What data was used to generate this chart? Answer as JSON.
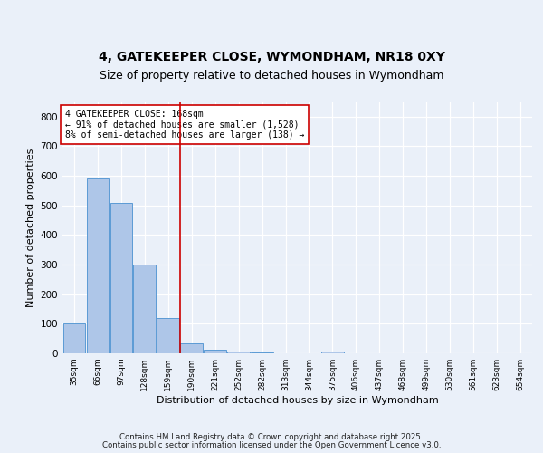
{
  "title1": "4, GATEKEEPER CLOSE, WYMONDHAM, NR18 0XY",
  "title2": "Size of property relative to detached houses in Wymondham",
  "xlabel": "Distribution of detached houses by size in Wymondham",
  "ylabel": "Number of detached properties",
  "bin_labels": [
    "35sqm",
    "66sqm",
    "97sqm",
    "128sqm",
    "159sqm",
    "190sqm",
    "221sqm",
    "252sqm",
    "282sqm",
    "313sqm",
    "344sqm",
    "375sqm",
    "406sqm",
    "437sqm",
    "468sqm",
    "499sqm",
    "530sqm",
    "561sqm",
    "623sqm",
    "654sqm"
  ],
  "bar_heights": [
    100,
    590,
    510,
    300,
    120,
    35,
    12,
    7,
    3,
    0,
    0,
    5,
    0,
    0,
    0,
    0,
    0,
    0,
    0,
    0
  ],
  "bar_color": "#aec6e8",
  "bar_edge_color": "#5b9bd5",
  "vline_x": 4.5,
  "vline_color": "#cc0000",
  "annotation_text": "4 GATEKEEPER CLOSE: 168sqm\n← 91% of detached houses are smaller (1,528)\n8% of semi-detached houses are larger (138) →",
  "annotation_box_color": "#ffffff",
  "annotation_box_edge": "#cc0000",
  "ylim": [
    0,
    850
  ],
  "yticks": [
    0,
    100,
    200,
    300,
    400,
    500,
    600,
    700,
    800
  ],
  "footer1": "Contains HM Land Registry data © Crown copyright and database right 2025.",
  "footer2": "Contains public sector information licensed under the Open Government Licence v3.0.",
  "bg_color": "#eaf0f9",
  "plot_bg_color": "#eaf0f9",
  "grid_color": "#ffffff",
  "title1_fontsize": 10,
  "title2_fontsize": 9
}
